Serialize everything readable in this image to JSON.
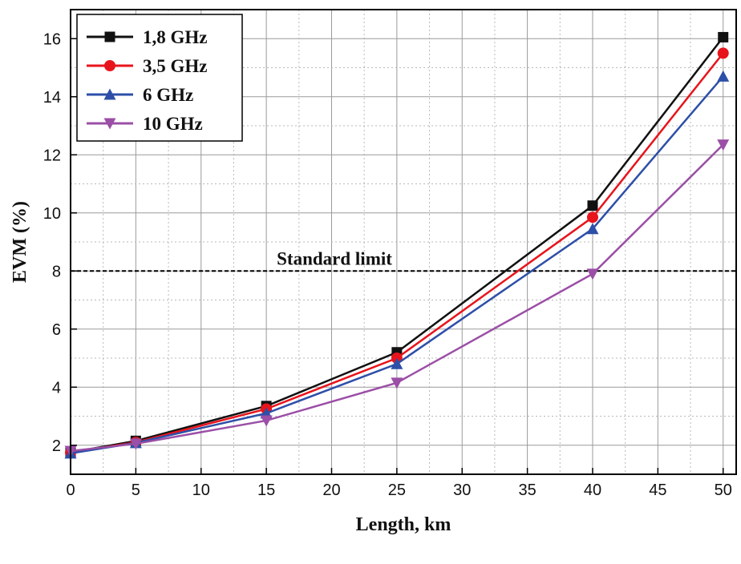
{
  "chart_data": {
    "type": "line",
    "xlabel": "Length, km",
    "ylabel": "EVM (%)",
    "x": [
      0,
      5,
      15,
      25,
      40,
      50
    ],
    "xlim": [
      0,
      51
    ],
    "ylim": [
      1,
      17
    ],
    "xticks": [
      0,
      5,
      10,
      15,
      20,
      25,
      30,
      35,
      40,
      45,
      50
    ],
    "yticks": [
      2,
      4,
      6,
      8,
      10,
      12,
      14,
      16
    ],
    "grid": true,
    "legend_position": "top-left",
    "series": [
      {
        "name": "1,8 GHz",
        "values": [
          1.75,
          2.15,
          3.35,
          5.2,
          10.25,
          16.05
        ],
        "color": "#111111",
        "marker": "square"
      },
      {
        "name": "3,5 GHz",
        "values": [
          1.75,
          2.1,
          3.25,
          5.0,
          9.85,
          15.5
        ],
        "color": "#e8141c",
        "marker": "circle"
      },
      {
        "name": "6 GHz",
        "values": [
          1.72,
          2.08,
          3.1,
          4.8,
          9.45,
          14.7
        ],
        "color": "#2d4fa8",
        "marker": "triangle-up"
      },
      {
        "name": "10 GHz",
        "values": [
          1.8,
          2.05,
          2.85,
          4.15,
          7.9,
          12.35
        ],
        "color": "#9b4fa6",
        "marker": "triangle-down"
      }
    ],
    "reference_line": {
      "y": 8,
      "label": "Standard limit",
      "style": "dashed",
      "color": "#000000"
    }
  }
}
